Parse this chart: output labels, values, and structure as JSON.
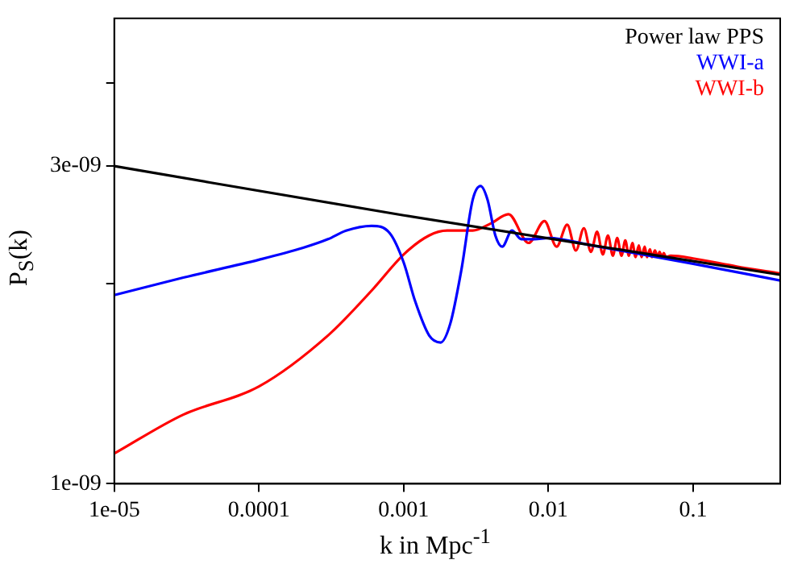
{
  "chart_data": {
    "type": "line",
    "xlabel": "k in Mpc$^{-1}$",
    "ylabel": "P$_{S}$(k)",
    "log": "xy",
    "grid": false,
    "legend": "top right",
    "marker": "none",
    "line_style": "solid",
    "xlim": [
      1e-05,
      0.4
    ],
    "xticks": [
      {
        "value": 1e-05,
        "label": "1e-05"
      },
      0.0001,
      0.001,
      0.01,
      0.1
    ],
    "ylim": [
      1e-09,
      5e-09
    ],
    "yticks": [
      {
        "value": 1e-09,
        "label": "1e-09"
      },
      {
        "value": 2e-09,
        "label": null
      },
      {
        "value": 3e-09,
        "label": "3e-09"
      },
      {
        "value": 4e-09,
        "label": null
      }
    ],
    "series": [
      {
        "name": "Power law PPS",
        "color": "#000000",
        "x": [
          1e-05,
          0.001,
          0.4
        ],
        "values": [
          3e-09,
          2.53e-09,
          2.06e-09
        ]
      },
      {
        "name": "WWI-a",
        "color": "#0000ff",
        "x": [
          1e-05,
          3e-05,
          0.0001,
          0.0002,
          0.0003,
          0.0004,
          0.0006,
          0.0008,
          0.001,
          0.0012,
          0.0015,
          0.0018,
          0.0021,
          0.0025,
          0.003,
          0.0034,
          0.0038,
          0.0043,
          0.0048,
          0.0056,
          0.0065,
          0.008,
          0.01,
          0.02,
          0.05,
          0.1,
          0.4
        ],
        "values": [
          1.92e-09,
          2.04e-09,
          2.17e-09,
          2.26e-09,
          2.33e-09,
          2.4e-09,
          2.44e-09,
          2.38e-09,
          2.15e-09,
          1.88e-09,
          1.67e-09,
          1.63e-09,
          1.74e-09,
          2.09e-09,
          2.67e-09,
          2.8e-09,
          2.67e-09,
          2.36e-09,
          2.27e-09,
          2.4e-09,
          2.33e-09,
          2.33e-09,
          2.34e-09,
          2.28e-09,
          2.2e-09,
          2.14e-09,
          2.02e-09
        ]
      },
      {
        "name": "WWI-b",
        "color": "#ff0000",
        "x": [
          1e-05,
          3e-05,
          0.0001,
          0.0003,
          0.0006,
          0.001,
          0.0015,
          0.002,
          0.003,
          0.004,
          0.0053,
          0.0073,
          0.0094,
          0.0114,
          0.0135,
          0.0155,
          0.0176,
          0.0197,
          0.0217,
          0.0238,
          0.0258,
          0.0279,
          0.0299,
          0.032,
          0.034,
          0.036,
          0.0381,
          0.04,
          0.0422,
          0.044,
          0.0463,
          0.048,
          0.0504,
          0.052,
          0.0545,
          0.057,
          0.0586,
          0.061,
          0.0627,
          0.065,
          0.07,
          0.1,
          0.2,
          0.4
        ],
        "values": [
          1.11e-09,
          1.27e-09,
          1.4e-09,
          1.67e-09,
          1.95e-09,
          2.21e-09,
          2.36e-09,
          2.4e-09,
          2.4e-09,
          2.46e-09,
          2.54e-09,
          2.3e-09,
          2.48e-09,
          2.27e-09,
          2.45e-09,
          2.24e-09,
          2.42e-09,
          2.23e-09,
          2.39e-09,
          2.21e-09,
          2.36e-09,
          2.2e-09,
          2.34e-09,
          2.2e-09,
          2.32e-09,
          2.2e-09,
          2.3e-09,
          2.19e-09,
          2.28e-09,
          2.19e-09,
          2.27e-09,
          2.19e-09,
          2.25e-09,
          2.19e-09,
          2.24e-09,
          2.19e-09,
          2.23e-09,
          2.19e-09,
          2.22e-09,
          2.19e-09,
          2.2e-09,
          2.18e-09,
          2.12e-09,
          2.07e-09
        ]
      }
    ]
  }
}
